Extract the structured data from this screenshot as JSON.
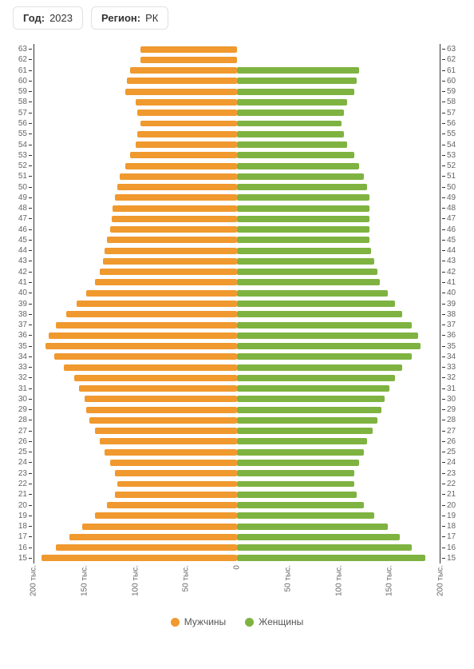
{
  "filters": {
    "year_label": "Год:",
    "year_value": "2023",
    "region_label": "Регион:",
    "region_value": "РК"
  },
  "chart": {
    "type": "population-pyramid",
    "x_max": 200,
    "colors": {
      "men": "#f0992e",
      "women": "#7fb341",
      "axis": "#333333",
      "tick_text": "#666666",
      "background": "#ffffff"
    },
    "bar_height_ratio": 0.6,
    "label_fontsize": 10,
    "legend": {
      "men": "Мужчины",
      "women": "Женщины"
    },
    "x_ticks": [
      {
        "pos": 0.0,
        "label": "200 тыс."
      },
      {
        "pos": 0.125,
        "label": "150 тыс."
      },
      {
        "pos": 0.25,
        "label": "100 тыс."
      },
      {
        "pos": 0.375,
        "label": "50 тыс."
      },
      {
        "pos": 0.5,
        "label": "0"
      },
      {
        "pos": 0.625,
        "label": "50 тыс."
      },
      {
        "pos": 0.75,
        "label": "100 тыс."
      },
      {
        "pos": 0.875,
        "label": "150 тыс."
      },
      {
        "pos": 1.0,
        "label": "200 тыс."
      }
    ],
    "rows": [
      {
        "age": "63",
        "men": 95,
        "women": 0
      },
      {
        "age": "62",
        "men": 95,
        "women": 0
      },
      {
        "age": "61",
        "men": 105,
        "women": 120
      },
      {
        "age": "60",
        "men": 108,
        "women": 118
      },
      {
        "age": "59",
        "men": 110,
        "women": 115
      },
      {
        "age": "58",
        "men": 100,
        "women": 108
      },
      {
        "age": "57",
        "men": 98,
        "women": 105
      },
      {
        "age": "56",
        "men": 95,
        "women": 103
      },
      {
        "age": "55",
        "men": 98,
        "women": 105
      },
      {
        "age": "54",
        "men": 100,
        "women": 108
      },
      {
        "age": "53",
        "men": 105,
        "women": 115
      },
      {
        "age": "52",
        "men": 110,
        "women": 120
      },
      {
        "age": "51",
        "men": 115,
        "women": 125
      },
      {
        "age": "50",
        "men": 118,
        "women": 128
      },
      {
        "age": "49",
        "men": 120,
        "women": 130
      },
      {
        "age": "48",
        "men": 122,
        "women": 130
      },
      {
        "age": "47",
        "men": 123,
        "women": 130
      },
      {
        "age": "46",
        "men": 125,
        "women": 130
      },
      {
        "age": "45",
        "men": 128,
        "women": 130
      },
      {
        "age": "44",
        "men": 130,
        "women": 132
      },
      {
        "age": "43",
        "men": 132,
        "women": 135
      },
      {
        "age": "42",
        "men": 135,
        "women": 138
      },
      {
        "age": "41",
        "men": 140,
        "women": 140
      },
      {
        "age": "40",
        "men": 148,
        "women": 148
      },
      {
        "age": "39",
        "men": 158,
        "women": 155
      },
      {
        "age": "38",
        "men": 168,
        "women": 162
      },
      {
        "age": "37",
        "men": 178,
        "women": 172
      },
      {
        "age": "36",
        "men": 185,
        "women": 178
      },
      {
        "age": "35",
        "men": 188,
        "women": 180
      },
      {
        "age": "34",
        "men": 180,
        "women": 172
      },
      {
        "age": "33",
        "men": 170,
        "women": 162
      },
      {
        "age": "32",
        "men": 160,
        "women": 155
      },
      {
        "age": "31",
        "men": 155,
        "women": 150
      },
      {
        "age": "30",
        "men": 150,
        "women": 145
      },
      {
        "age": "29",
        "men": 148,
        "women": 142
      },
      {
        "age": "28",
        "men": 145,
        "women": 138
      },
      {
        "age": "27",
        "men": 140,
        "women": 133
      },
      {
        "age": "26",
        "men": 135,
        "women": 128
      },
      {
        "age": "25",
        "men": 130,
        "women": 125
      },
      {
        "age": "24",
        "men": 125,
        "women": 120
      },
      {
        "age": "23",
        "men": 120,
        "women": 115
      },
      {
        "age": "22",
        "men": 118,
        "women": 115
      },
      {
        "age": "21",
        "men": 120,
        "women": 118
      },
      {
        "age": "20",
        "men": 128,
        "women": 125
      },
      {
        "age": "19",
        "men": 140,
        "women": 135
      },
      {
        "age": "18",
        "men": 152,
        "women": 148
      },
      {
        "age": "17",
        "men": 165,
        "women": 160
      },
      {
        "age": "16",
        "men": 178,
        "women": 172
      },
      {
        "age": "15",
        "men": 192,
        "women": 185
      }
    ]
  }
}
